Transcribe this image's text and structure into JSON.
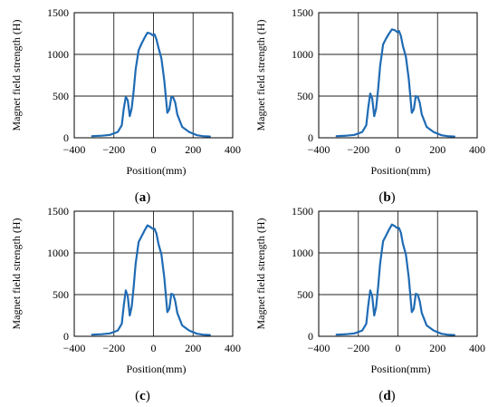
{
  "colors": {
    "series": "#1f6bb4",
    "grid": "#222222",
    "axis": "#000000"
  },
  "chart_data": [
    {
      "type": "line",
      "panel_label": "a",
      "xlabel": "Position(mm)",
      "ylabel": "Magnet field strength (H)",
      "xlim": [
        -400,
        400
      ],
      "ylim": [
        0,
        1500
      ],
      "xticks": [
        -400,
        -200,
        0,
        200,
        400
      ],
      "yticks": [
        0,
        500,
        1000,
        1500
      ],
      "grid": true,
      "x": [
        -310,
        -260,
        -220,
        -180,
        -160,
        -150,
        -140,
        -130,
        -120,
        -110,
        -100,
        -90,
        -75,
        -60,
        -45,
        -30,
        -15,
        -5,
        5,
        15,
        25,
        40,
        55,
        70,
        80,
        90,
        100,
        110,
        120,
        145,
        180,
        220,
        250,
        285
      ],
      "series": [
        {
          "values": [
            20,
            25,
            35,
            70,
            150,
            350,
            490,
            450,
            260,
            350,
            560,
            820,
            1050,
            1130,
            1200,
            1260,
            1250,
            1230,
            1240,
            1180,
            1080,
            950,
            680,
            300,
            340,
            490,
            480,
            420,
            280,
            130,
            70,
            30,
            20,
            15
          ]
        }
      ]
    },
    {
      "type": "line",
      "panel_label": "b",
      "xlabel": "Position(mm)",
      "ylabel": "Magnet field strength (H)",
      "xlim": [
        -400,
        400
      ],
      "ylim": [
        0,
        1500
      ],
      "xticks": [
        -400,
        -200,
        0,
        200,
        400
      ],
      "yticks": [
        0,
        500,
        1000,
        1500
      ],
      "grid": true,
      "x": [
        -310,
        -260,
        -220,
        -180,
        -160,
        -150,
        -140,
        -130,
        -120,
        -110,
        -100,
        -90,
        -75,
        -60,
        -45,
        -30,
        -15,
        -5,
        5,
        15,
        25,
        40,
        55,
        70,
        80,
        90,
        100,
        110,
        120,
        145,
        180,
        220,
        250,
        285
      ],
      "series": [
        {
          "values": [
            20,
            25,
            35,
            70,
            150,
            360,
            530,
            470,
            260,
            350,
            580,
            860,
            1120,
            1190,
            1250,
            1300,
            1290,
            1270,
            1280,
            1220,
            1100,
            970,
            700,
            300,
            340,
            500,
            490,
            420,
            280,
            130,
            70,
            30,
            20,
            15
          ]
        }
      ]
    },
    {
      "type": "line",
      "panel_label": "c",
      "xlabel": "Position(mm)",
      "ylabel": "Magnet field strength (H)",
      "xlim": [
        -400,
        400
      ],
      "ylim": [
        0,
        1500
      ],
      "xticks": [
        -400,
        -200,
        0,
        200,
        400
      ],
      "yticks": [
        0,
        500,
        1000,
        1500
      ],
      "grid": true,
      "x": [
        -310,
        -260,
        -220,
        -180,
        -160,
        -150,
        -140,
        -130,
        -120,
        -110,
        -100,
        -90,
        -75,
        -60,
        -45,
        -30,
        -15,
        -5,
        5,
        15,
        25,
        40,
        55,
        70,
        80,
        90,
        100,
        110,
        120,
        145,
        180,
        220,
        250,
        285
      ],
      "series": [
        {
          "values": [
            20,
            25,
            35,
            70,
            150,
            370,
            550,
            480,
            250,
            350,
            590,
            870,
            1130,
            1200,
            1270,
            1330,
            1310,
            1290,
            1290,
            1230,
            1110,
            980,
            700,
            290,
            330,
            510,
            500,
            420,
            280,
            130,
            70,
            30,
            20,
            15
          ]
        }
      ]
    },
    {
      "type": "line",
      "panel_label": "d",
      "xlabel": "Position(mm)",
      "ylabel": "Magnet field strength (H)",
      "xlim": [
        -400,
        400
      ],
      "ylim": [
        0,
        1500
      ],
      "xticks": [
        -400,
        -200,
        0,
        200,
        400
      ],
      "yticks": [
        0,
        500,
        1000,
        1500
      ],
      "grid": true,
      "x": [
        -310,
        -260,
        -220,
        -180,
        -160,
        -150,
        -140,
        -130,
        -120,
        -110,
        -100,
        -90,
        -75,
        -60,
        -45,
        -30,
        -15,
        -5,
        5,
        15,
        25,
        40,
        55,
        70,
        80,
        90,
        100,
        110,
        120,
        145,
        180,
        220,
        250,
        285
      ],
      "series": [
        {
          "values": [
            20,
            25,
            35,
            70,
            150,
            370,
            550,
            480,
            250,
            350,
            590,
            870,
            1140,
            1210,
            1280,
            1340,
            1320,
            1300,
            1300,
            1240,
            1110,
            980,
            700,
            290,
            330,
            510,
            500,
            420,
            280,
            130,
            70,
            30,
            20,
            15
          ]
        }
      ]
    }
  ]
}
